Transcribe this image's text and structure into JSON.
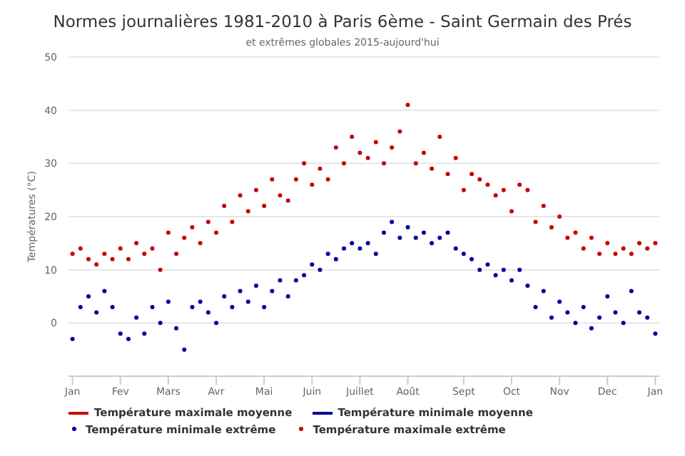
{
  "chart_data": {
    "type": "scatter",
    "title": "Normes journalières 1981-2010 à Paris 6ème - Saint Germain des Prés",
    "subtitle": "et extrêmes globales 2015-aujourd'hui",
    "ylabel": "Températures (°C)",
    "categories": [
      "Jan",
      null,
      null,
      null,
      null,
      null,
      "Fev",
      null,
      null,
      null,
      null,
      null,
      "Mars",
      null,
      null,
      null,
      null,
      null,
      "Avr",
      null,
      null,
      null,
      null,
      null,
      "Mai",
      null,
      null,
      null,
      null,
      null,
      "Juin",
      null,
      null,
      null,
      null,
      null,
      "Juillet",
      null,
      null,
      null,
      null,
      null,
      "Août",
      null,
      null,
      null,
      null,
      null,
      null,
      "Sept",
      null,
      null,
      null,
      null,
      null,
      "Oct",
      null,
      null,
      null,
      null,
      null,
      "Nov",
      null,
      null,
      null,
      null,
      null,
      "Dec",
      null,
      null,
      null,
      null,
      null,
      "Jan"
    ],
    "ylim": [
      -10,
      50
    ],
    "yticks": [
      0,
      10,
      20,
      30,
      40,
      50
    ],
    "grid": "y",
    "legend": "bottom",
    "marker": "circle",
    "series": [
      {
        "name": "Température maximale moyenne",
        "type": "line",
        "color": "#cc0000",
        "values": [
          null,
          null,
          null,
          null,
          null,
          null,
          null,
          null,
          null,
          null,
          null,
          null,
          null,
          null,
          null,
          null,
          null,
          null,
          null,
          null,
          null,
          null,
          null,
          null,
          null,
          null,
          null,
          null,
          null,
          null,
          null,
          null,
          null,
          null,
          null,
          null,
          null,
          null,
          null,
          null,
          null,
          null,
          null,
          null,
          null,
          null,
          null,
          null,
          null,
          null,
          null,
          null,
          null,
          null,
          null,
          null,
          null,
          null,
          null,
          null,
          null,
          null,
          null,
          null,
          null,
          null,
          null,
          null,
          null,
          null,
          null,
          null,
          null,
          null
        ]
      },
      {
        "name": "Température minimale moyenne",
        "type": "line",
        "color": "#000099",
        "values": [
          null,
          null,
          null,
          null,
          null,
          null,
          null,
          null,
          null,
          null,
          null,
          null,
          null,
          null,
          null,
          null,
          null,
          null,
          null,
          null,
          null,
          null,
          null,
          null,
          null,
          null,
          null,
          null,
          null,
          null,
          null,
          null,
          null,
          null,
          null,
          null,
          null,
          null,
          null,
          null,
          null,
          null,
          null,
          null,
          null,
          null,
          null,
          null,
          null,
          null,
          null,
          null,
          null,
          null,
          null,
          null,
          null,
          null,
          null,
          null,
          null,
          null,
          null,
          null,
          null,
          null,
          null,
          null,
          null,
          null,
          null,
          null,
          null,
          null
        ]
      },
      {
        "name": "Température minimale extrême",
        "color": "#000099",
        "values": [
          -3,
          3,
          5,
          2,
          6,
          3,
          -2,
          -3,
          1,
          -2,
          3,
          0,
          4,
          -1,
          -5,
          3,
          4,
          2,
          0,
          5,
          3,
          6,
          4,
          7,
          3,
          6,
          8,
          5,
          8,
          9,
          11,
          10,
          13,
          12,
          14,
          15,
          14,
          15,
          13,
          17,
          19,
          16,
          18,
          16,
          17,
          15,
          16,
          17,
          14,
          13,
          12,
          10,
          11,
          9,
          10,
          8,
          10,
          7,
          3,
          6,
          1,
          4,
          2,
          0,
          3,
          -1,
          1,
          5,
          2,
          0,
          6,
          2,
          1,
          -2
        ]
      },
      {
        "name": "Température maximale extrême",
        "color": "#cc0000",
        "values": [
          13,
          14,
          12,
          11,
          13,
          12,
          14,
          12,
          15,
          13,
          14,
          10,
          17,
          13,
          16,
          18,
          15,
          19,
          17,
          22,
          19,
          24,
          21,
          25,
          22,
          27,
          24,
          23,
          27,
          30,
          26,
          29,
          27,
          33,
          30,
          35,
          32,
          31,
          34,
          30,
          33,
          36,
          41,
          30,
          32,
          29,
          35,
          28,
          31,
          25,
          28,
          27,
          26,
          24,
          25,
          21,
          26,
          25,
          19,
          22,
          18,
          20,
          16,
          17,
          14,
          16,
          13,
          15,
          13,
          14,
          13,
          15,
          14,
          15
        ]
      }
    ]
  }
}
